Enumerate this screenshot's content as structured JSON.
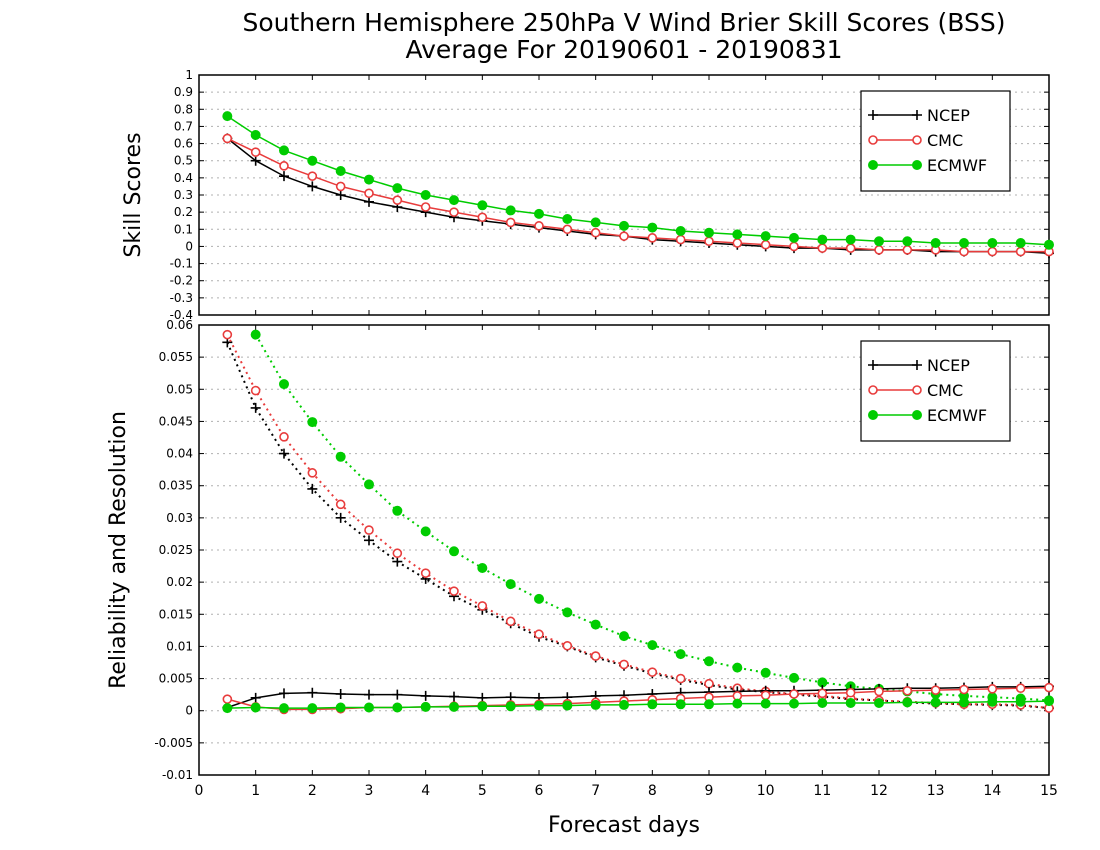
{
  "title_line1": "Southern Hemisphere 250hPa V Wind Brier Skill Scores (BSS)",
  "title_line2": "Average For 20190601 - 20190831",
  "xlabel": "Forecast days",
  "colors": {
    "NCEP": "#000000",
    "CMC": "#e83c3c",
    "ECMWF": "#00cc00"
  },
  "chart_data": [
    {
      "type": "line",
      "ylabel": "Skill Scores",
      "xlim": [
        0,
        15
      ],
      "ylim": [
        -0.4,
        1
      ],
      "x_ticks": [
        "0",
        "1",
        "2",
        "3",
        "4",
        "5",
        "6",
        "7",
        "8",
        "9",
        "10",
        "11",
        "12",
        "13",
        "14",
        "15"
      ],
      "y_ticks": [
        "-0.4",
        "-0.3",
        "-0.2",
        "-0.1",
        "0",
        "0.1",
        "0.2",
        "0.3",
        "0.4",
        "0.5",
        "0.6",
        "0.7",
        "0.8",
        "0.9",
        "1"
      ],
      "grid": true,
      "legend_position": "top-right",
      "x": [
        0.5,
        1,
        1.5,
        2,
        2.5,
        3,
        3.5,
        4,
        4.5,
        5,
        5.5,
        6,
        6.5,
        7,
        7.5,
        8,
        8.5,
        9,
        9.5,
        10,
        10.5,
        11,
        11.5,
        12,
        12.5,
        13,
        13.5,
        14,
        14.5,
        15
      ],
      "series": [
        {
          "name": "NCEP",
          "values": [
            0.63,
            0.5,
            0.41,
            0.35,
            0.3,
            0.26,
            0.23,
            0.2,
            0.17,
            0.15,
            0.13,
            0.11,
            0.09,
            0.07,
            0.06,
            0.04,
            0.03,
            0.02,
            0.01,
            0.0,
            -0.01,
            -0.01,
            -0.02,
            -0.02,
            -0.02,
            -0.03,
            -0.03,
            -0.03,
            -0.03,
            -0.04
          ]
        },
        {
          "name": "CMC",
          "values": [
            0.63,
            0.55,
            0.47,
            0.41,
            0.35,
            0.31,
            0.27,
            0.23,
            0.2,
            0.17,
            0.14,
            0.12,
            0.1,
            0.08,
            0.06,
            0.05,
            0.04,
            0.03,
            0.02,
            0.01,
            0.0,
            -0.01,
            -0.01,
            -0.02,
            -0.02,
            -0.02,
            -0.03,
            -0.03,
            -0.03,
            -0.03
          ]
        },
        {
          "name": "ECMWF",
          "values": [
            0.76,
            0.65,
            0.56,
            0.5,
            0.44,
            0.39,
            0.34,
            0.3,
            0.27,
            0.24,
            0.21,
            0.19,
            0.16,
            0.14,
            0.12,
            0.11,
            0.09,
            0.08,
            0.07,
            0.06,
            0.05,
            0.04,
            0.04,
            0.03,
            0.03,
            0.02,
            0.02,
            0.02,
            0.02,
            0.01
          ]
        }
      ]
    },
    {
      "type": "line",
      "ylabel": "Reliability and Resolution",
      "xlim": [
        0,
        15
      ],
      "ylim": [
        -0.01,
        0.06
      ],
      "x_ticks": [
        "0",
        "1",
        "2",
        "3",
        "4",
        "5",
        "6",
        "7",
        "8",
        "9",
        "10",
        "11",
        "12",
        "13",
        "14",
        "15"
      ],
      "y_ticks": [
        "-0.01",
        "-0.005",
        "0",
        "0.005",
        "0.01",
        "0.015",
        "0.02",
        "0.025",
        "0.03",
        "0.035",
        "0.04",
        "0.045",
        "0.05",
        "0.055",
        "0.06"
      ],
      "grid": true,
      "legend_position": "top-right",
      "x": [
        0.5,
        1,
        1.5,
        2,
        2.5,
        3,
        3.5,
        4,
        4.5,
        5,
        5.5,
        6,
        6.5,
        7,
        7.5,
        8,
        8.5,
        9,
        9.5,
        10,
        10.5,
        11,
        11.5,
        12,
        12.5,
        13,
        13.5,
        14,
        14.5,
        15
      ],
      "resolution_series": [
        {
          "name": "NCEP",
          "values": [
            0.0573,
            0.0471,
            0.04,
            0.0345,
            0.03,
            0.0265,
            0.0232,
            0.0205,
            0.0178,
            0.0157,
            0.0136,
            0.0115,
            0.01,
            0.0083,
            0.007,
            0.0058,
            0.0048,
            0.004,
            0.0033,
            0.0029,
            0.0025,
            0.0022,
            0.0018,
            0.0016,
            0.0013,
            0.0011,
            0.001,
            0.0009,
            0.0008,
            0.0004
          ]
        },
        {
          "name": "CMC",
          "values": [
            0.0585,
            0.0498,
            0.0426,
            0.037,
            0.0321,
            0.0281,
            0.0245,
            0.0214,
            0.0186,
            0.0163,
            0.0139,
            0.0119,
            0.0101,
            0.0085,
            0.0072,
            0.006,
            0.005,
            0.0042,
            0.0035,
            0.003,
            0.0026,
            0.0023,
            0.0019,
            0.0016,
            0.0014,
            0.0012,
            0.001,
            0.001,
            0.0009,
            0.0004
          ]
        },
        {
          "name": "ECMWF",
          "values": [
            null,
            0.0585,
            0.0508,
            0.0449,
            0.0395,
            0.0352,
            0.0311,
            0.0279,
            0.0248,
            0.0222,
            0.0197,
            0.0174,
            0.0153,
            0.0134,
            0.0116,
            0.0102,
            0.0088,
            0.0077,
            0.0067,
            0.0059,
            0.0051,
            0.0044,
            0.0038,
            0.0034,
            0.003,
            0.0026,
            0.0023,
            0.0021,
            0.0019,
            0.0016
          ]
        }
      ],
      "reliability_series": [
        {
          "name": "NCEP",
          "values": [
            0.0005,
            0.002,
            0.0027,
            0.0028,
            0.0026,
            0.0025,
            0.0025,
            0.0023,
            0.0022,
            0.002,
            0.0021,
            0.002,
            0.0021,
            0.0023,
            0.0024,
            0.0026,
            0.0028,
            0.0029,
            0.003,
            0.0031,
            0.0031,
            0.0032,
            0.0033,
            0.0034,
            0.0035,
            0.0035,
            0.0036,
            0.0037,
            0.0037,
            0.0038
          ]
        },
        {
          "name": "CMC",
          "values": [
            0.0018,
            0.0006,
            0.0002,
            0.0002,
            0.0003,
            0.0005,
            0.0005,
            0.0006,
            0.0007,
            0.0008,
            0.0009,
            0.001,
            0.0011,
            0.0013,
            0.0015,
            0.0017,
            0.0019,
            0.0021,
            0.0023,
            0.0024,
            0.0026,
            0.0027,
            0.0028,
            0.003,
            0.0031,
            0.0032,
            0.0033,
            0.0034,
            0.0035,
            0.0036
          ]
        },
        {
          "name": "ECMWF",
          "values": [
            0.0004,
            0.0005,
            0.0004,
            0.0004,
            0.0005,
            0.0005,
            0.0005,
            0.0006,
            0.0006,
            0.0007,
            0.0007,
            0.0008,
            0.0008,
            0.0009,
            0.0009,
            0.001,
            0.001,
            0.001,
            0.0011,
            0.0011,
            0.0011,
            0.0012,
            0.0012,
            0.0012,
            0.0013,
            0.0013,
            0.0013,
            0.0014,
            0.0014,
            0.0015
          ]
        }
      ]
    }
  ]
}
